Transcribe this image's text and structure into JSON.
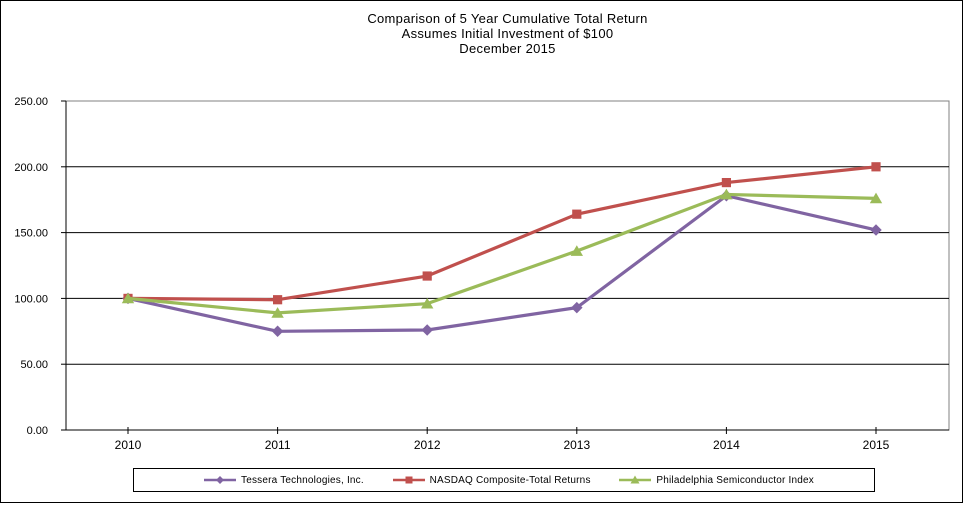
{
  "chart_data": {
    "type": "line",
    "title": "Comparison of 5 Year Cumulative Total Return",
    "subtitle": "Assumes Initial Investment of $100",
    "date_label": "December 2015",
    "categories": [
      "2010",
      "2011",
      "2012",
      "2013",
      "2014",
      "2015"
    ],
    "xlabel": "",
    "ylabel": "",
    "ylim": [
      0,
      250
    ],
    "ytick_step": 50,
    "ytick_labels": [
      "0.00",
      "50.00",
      "100.00",
      "150.00",
      "200.00",
      "250.00"
    ],
    "grid": true,
    "legend_position": "bottom",
    "colors": {
      "gridline": "#000000",
      "axis": "#000000",
      "plot_border": "#808080",
      "text": "#000000"
    },
    "series": [
      {
        "name": "Tessera Technologies, Inc.",
        "marker": "diamond",
        "color": "#8064A2",
        "values": [
          100,
          75,
          76,
          93,
          178,
          152
        ]
      },
      {
        "name": "NASDAQ Composite-Total Returns",
        "marker": "square",
        "color": "#C0504D",
        "values": [
          100,
          99,
          117,
          164,
          188,
          200
        ]
      },
      {
        "name": "Philadelphia Semiconductor Index",
        "marker": "triangle",
        "color": "#9BBB59",
        "values": [
          100,
          89,
          96,
          136,
          179,
          176
        ]
      }
    ]
  }
}
